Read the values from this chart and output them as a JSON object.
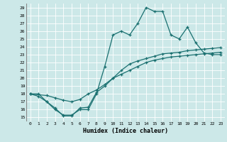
{
  "xlabel": "Humidex (Indice chaleur)",
  "bg_color": "#cce8e8",
  "grid_color": "#ffffff",
  "line_color": "#1a7070",
  "xlim": [
    -0.5,
    23.5
  ],
  "ylim": [
    14.5,
    29.5
  ],
  "yticks": [
    15,
    16,
    17,
    18,
    19,
    20,
    21,
    22,
    23,
    24,
    25,
    26,
    27,
    28,
    29
  ],
  "xticks": [
    0,
    1,
    2,
    3,
    4,
    5,
    6,
    7,
    8,
    9,
    10,
    11,
    12,
    13,
    14,
    15,
    16,
    17,
    18,
    19,
    20,
    21,
    22,
    23
  ],
  "line1_x": [
    0,
    1,
    2,
    3,
    4,
    5,
    6,
    7,
    8,
    9,
    10,
    11,
    12,
    13,
    14,
    15,
    16,
    17,
    18,
    19,
    20,
    21,
    22,
    23
  ],
  "line1_y": [
    18,
    17.7,
    17,
    16,
    15.3,
    15.3,
    16,
    16,
    18,
    21.5,
    25.5,
    26,
    25.5,
    27,
    29,
    28.5,
    28.5,
    25.5,
    25,
    26.5,
    24.5,
    23.2,
    23,
    23
  ],
  "line2_x": [
    0,
    2,
    3,
    4,
    5,
    6,
    7,
    8,
    9,
    10,
    11,
    12,
    13,
    14,
    15,
    16,
    17,
    18,
    19,
    20,
    21,
    22,
    23
  ],
  "line2_y": [
    18,
    17.8,
    17.5,
    17.2,
    17.0,
    17.3,
    18.0,
    18.5,
    19.2,
    20.0,
    20.5,
    21.0,
    21.5,
    22.0,
    22.3,
    22.5,
    22.7,
    22.8,
    22.9,
    23.0,
    23.1,
    23.2,
    23.3
  ],
  "line3_x": [
    0,
    1,
    2,
    3,
    4,
    5,
    6,
    7,
    8,
    9,
    10,
    11,
    12,
    13,
    14,
    15,
    16,
    17,
    18,
    19,
    20,
    21,
    22,
    23
  ],
  "line3_y": [
    18,
    18,
    17,
    16.2,
    15.2,
    15.2,
    16.2,
    16.3,
    18.2,
    19.0,
    20.0,
    21.0,
    21.8,
    22.2,
    22.5,
    22.8,
    23.1,
    23.2,
    23.3,
    23.5,
    23.6,
    23.7,
    23.8,
    23.9
  ]
}
